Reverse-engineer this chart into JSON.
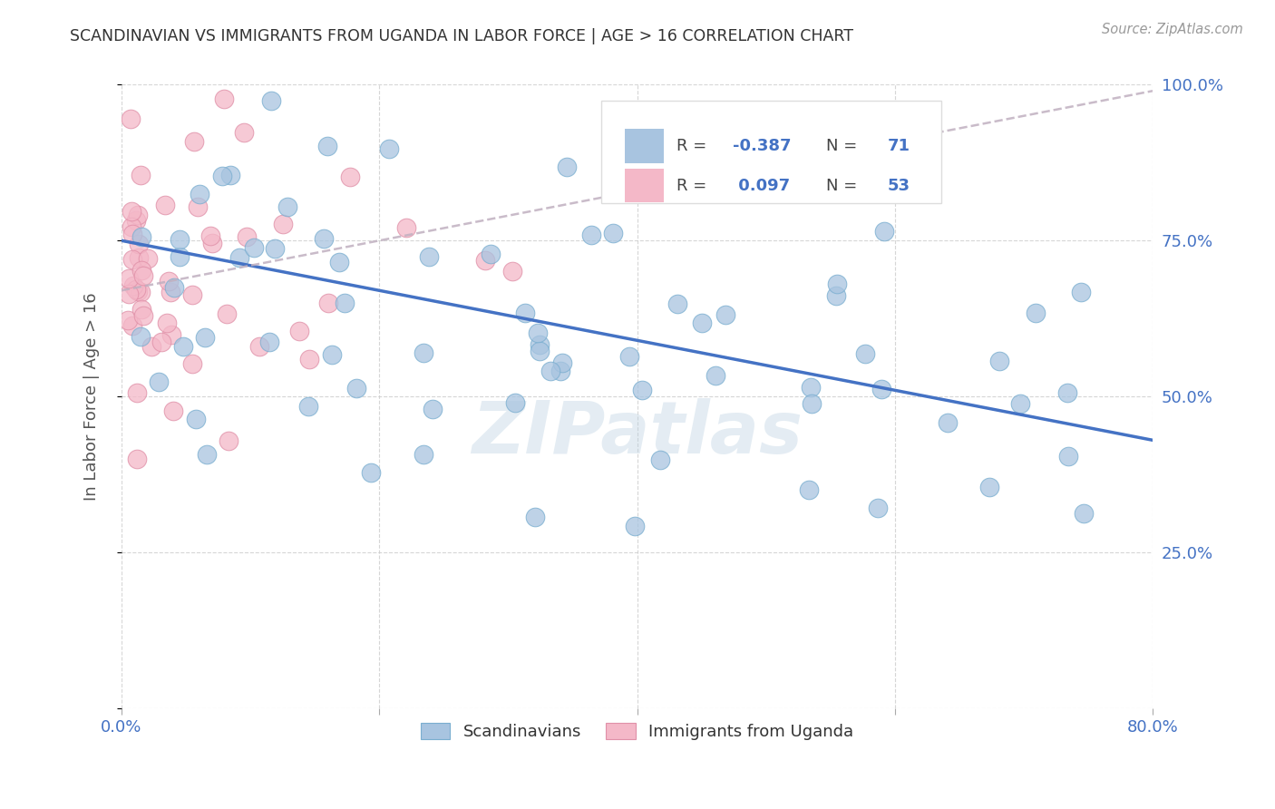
{
  "title": "SCANDINAVIAN VS IMMIGRANTS FROM UGANDA IN LABOR FORCE | AGE > 16 CORRELATION CHART",
  "source": "Source: ZipAtlas.com",
  "ylabel": "In Labor Force | Age > 16",
  "xlim": [
    0.0,
    0.8
  ],
  "ylim": [
    0.0,
    1.0
  ],
  "scand_color": "#a8c4e0",
  "scand_edge_color": "#7aaed0",
  "uganda_color": "#f4b8c8",
  "uganda_edge_color": "#e090a8",
  "scand_line_color": "#4472c4",
  "uganda_line_color": "#c0b0c0",
  "background_color": "#ffffff",
  "grid_color": "#cccccc",
  "watermark": "ZIPatlas",
  "scand_label": "Scandinavians",
  "uganda_label": "Immigrants from Uganda",
  "scand_R": -0.387,
  "scand_N": 71,
  "uganda_R": 0.097,
  "uganda_N": 53,
  "title_color": "#333333",
  "source_color": "#999999",
  "tick_color": "#4472c4",
  "ylabel_color": "#555555"
}
